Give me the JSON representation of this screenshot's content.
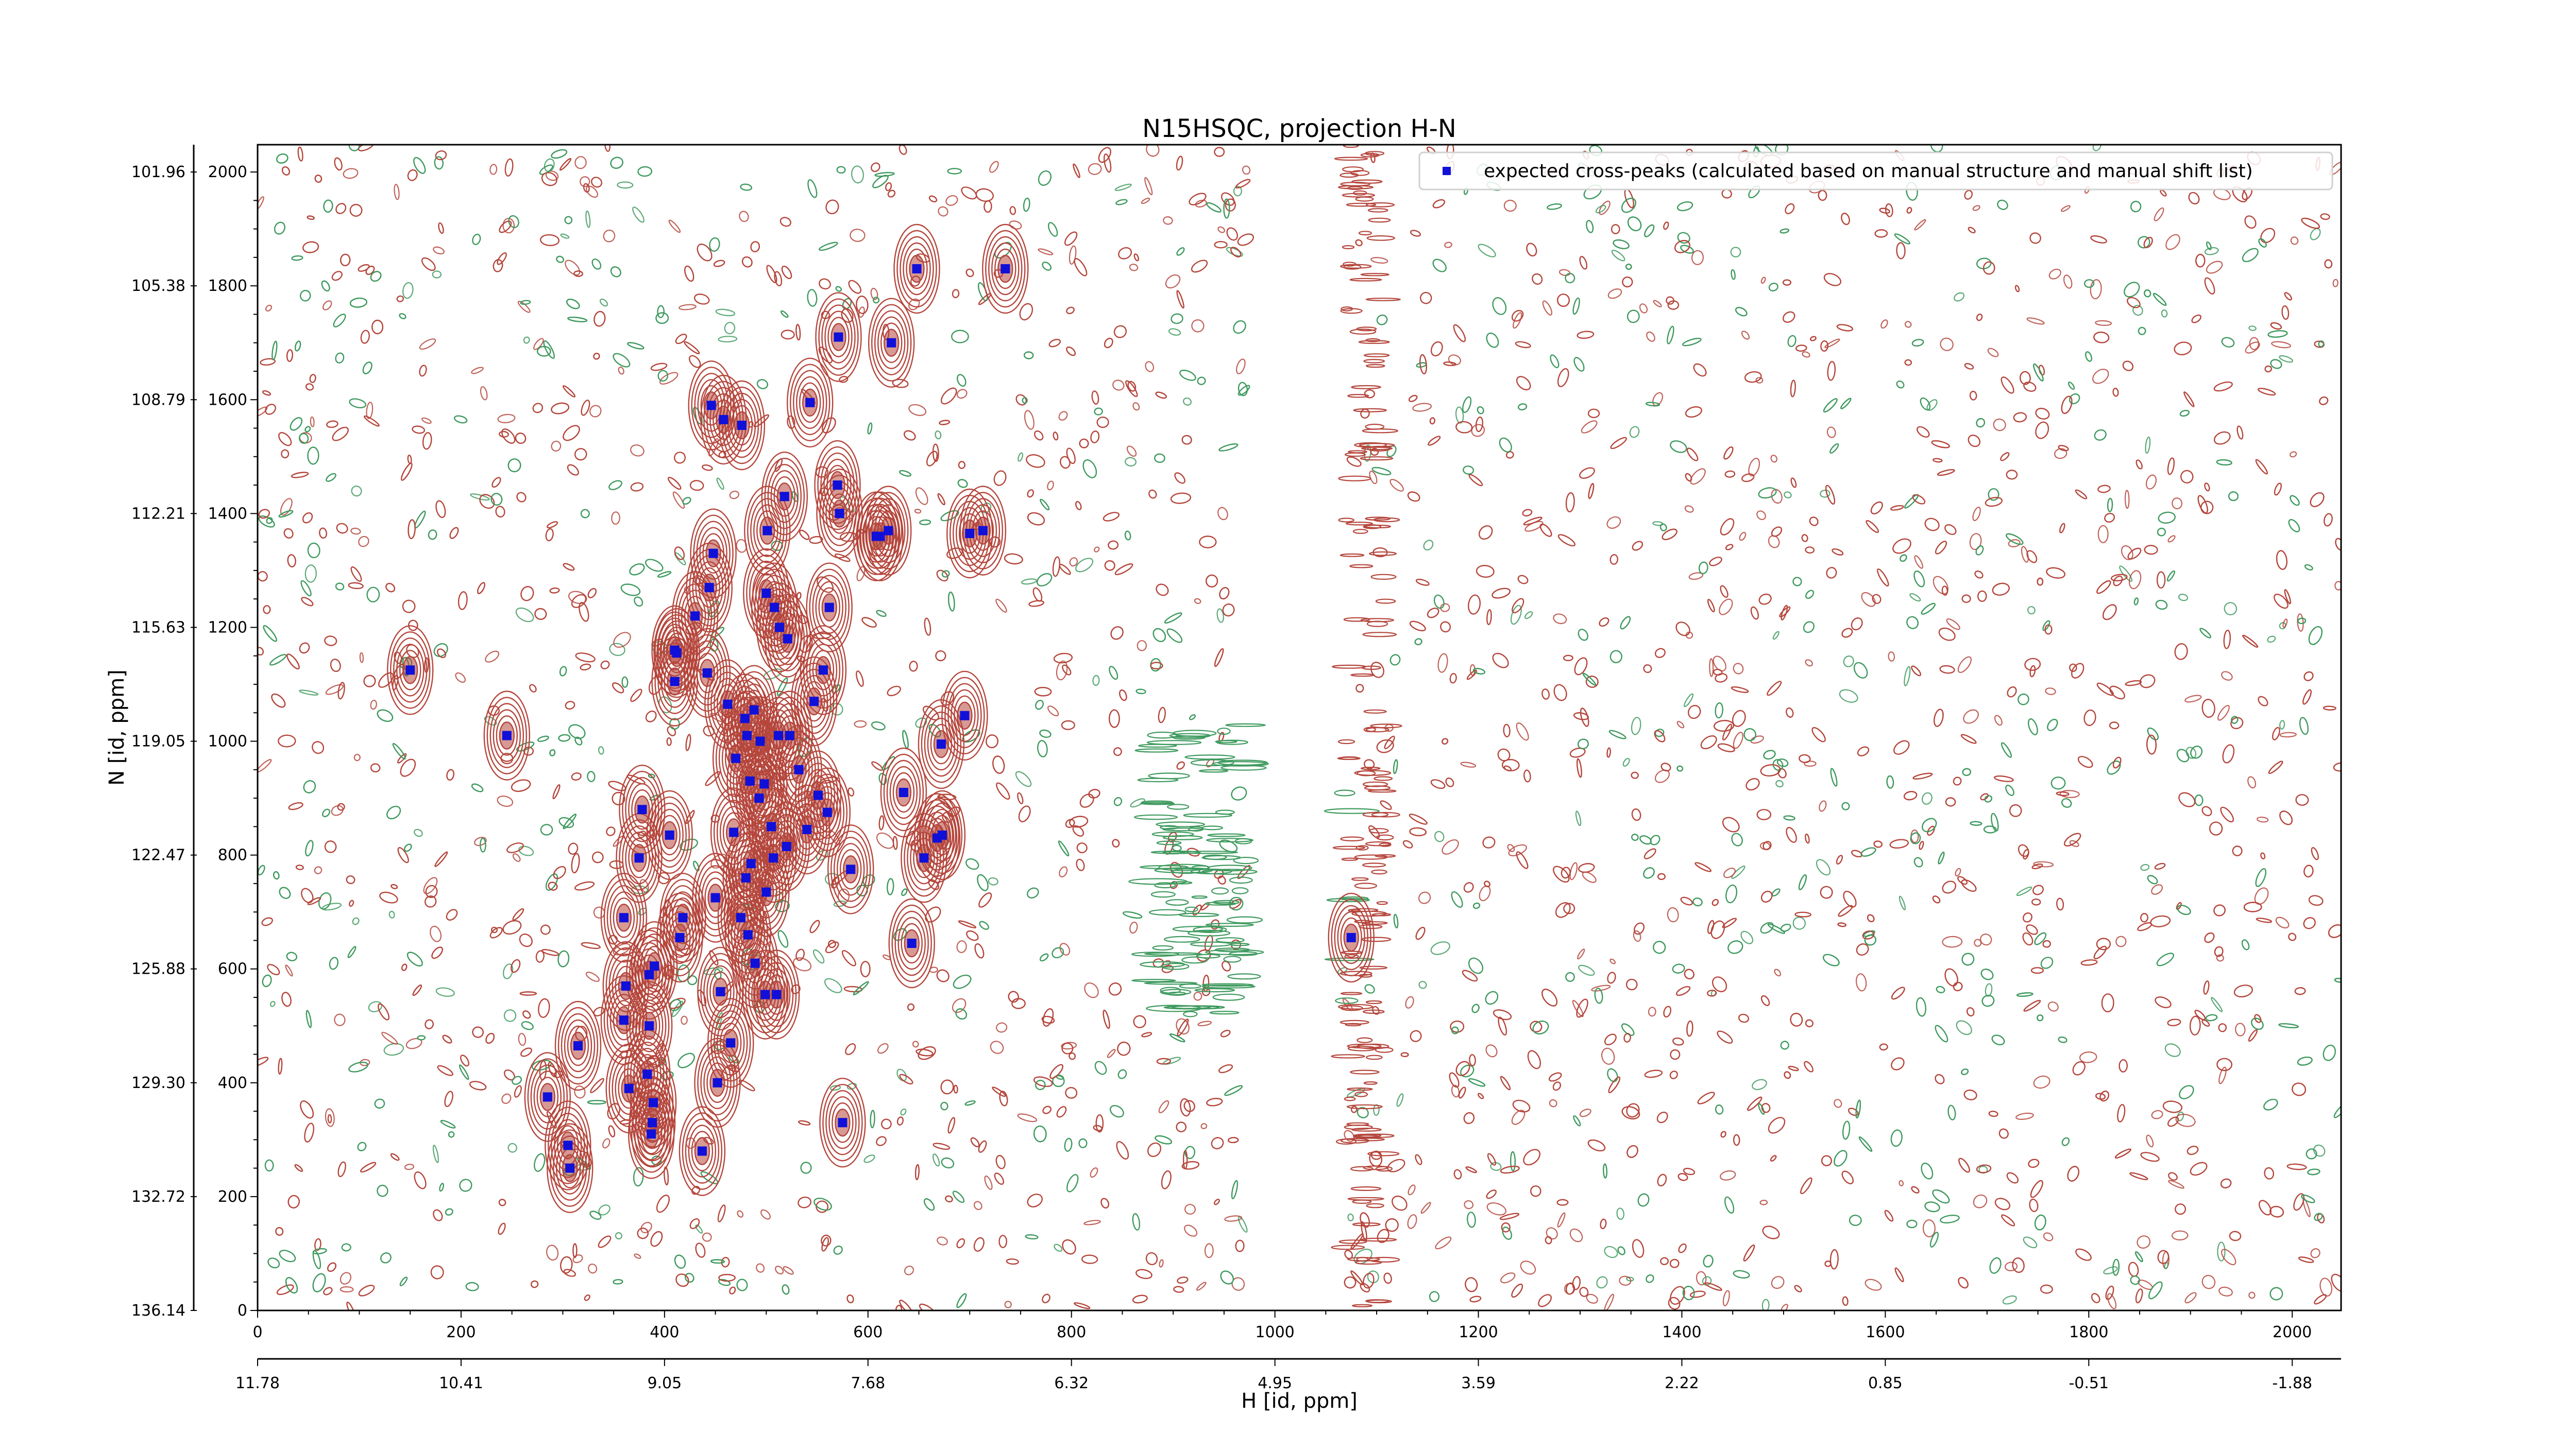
{
  "chart_data": {
    "type": "scatter",
    "title": "N15HSQC, projection H-N",
    "xlabel": "H [id, ppm]",
    "ylabel": "N [id, ppm]",
    "xlim": [
      0,
      2048
    ],
    "ylim": [
      0,
      2048
    ],
    "x_ticks": [
      0,
      200,
      400,
      600,
      800,
      1000,
      1200,
      1400,
      1600,
      1800,
      2000
    ],
    "y_ticks": [
      0,
      200,
      400,
      600,
      800,
      1000,
      1200,
      1400,
      1600,
      1800,
      2000
    ],
    "x_ppm_ticks": [
      "11.78",
      "10.41",
      "9.05",
      "7.68",
      "6.32",
      "4.95",
      "3.59",
      "2.22",
      "0.85",
      "-0.51",
      "-1.88"
    ],
    "y_ppm_ticks": [
      "136.14",
      "132.72",
      "129.30",
      "125.88",
      "122.47",
      "119.05",
      "115.63",
      "112.21",
      "108.79",
      "105.38",
      "101.96"
    ],
    "legend": {
      "label": "expected cross-peaks (calculated based on manual structure and manual shift list)",
      "position": "top-right"
    },
    "colors": {
      "positive_contour": "#b5463c",
      "negative_contour": "#3f9a5f",
      "peak_marker": "#1010d8"
    },
    "series": [
      {
        "name": "expected cross-peaks (calculated based on manual structure and manual shift list)",
        "points": [
          [
            150,
            1125
          ],
          [
            245,
            1010
          ],
          [
            285,
            375
          ],
          [
            305,
            290
          ],
          [
            307,
            250
          ],
          [
            315,
            465
          ],
          [
            360,
            510
          ],
          [
            360,
            690
          ],
          [
            362,
            570
          ],
          [
            365,
            390
          ],
          [
            375,
            795
          ],
          [
            378,
            880
          ],
          [
            383,
            415
          ],
          [
            385,
            500
          ],
          [
            385,
            590
          ],
          [
            387,
            310
          ],
          [
            388,
            330
          ],
          [
            389,
            365
          ],
          [
            390,
            605
          ],
          [
            405,
            835
          ],
          [
            410,
            1105
          ],
          [
            410,
            1160
          ],
          [
            412,
            1155
          ],
          [
            415,
            655
          ],
          [
            418,
            690
          ],
          [
            430,
            1220
          ],
          [
            437,
            280
          ],
          [
            442,
            1120
          ],
          [
            444,
            1270
          ],
          [
            446,
            1590
          ],
          [
            448,
            1330
          ],
          [
            450,
            725
          ],
          [
            452,
            400
          ],
          [
            455,
            560
          ],
          [
            458,
            1565
          ],
          [
            462,
            1065
          ],
          [
            465,
            470
          ],
          [
            468,
            840
          ],
          [
            470,
            970
          ],
          [
            475,
            690
          ],
          [
            476,
            1555
          ],
          [
            479,
            1040
          ],
          [
            480,
            760
          ],
          [
            481,
            1010
          ],
          [
            482,
            660
          ],
          [
            484,
            930
          ],
          [
            485,
            785
          ],
          [
            488,
            1055
          ],
          [
            489,
            610
          ],
          [
            493,
            900
          ],
          [
            494,
            1000
          ],
          [
            498,
            925
          ],
          [
            499,
            555
          ],
          [
            500,
            1260
          ],
          [
            500,
            735
          ],
          [
            501,
            1370
          ],
          [
            505,
            850
          ],
          [
            507,
            795
          ],
          [
            508,
            1235
          ],
          [
            510,
            555
          ],
          [
            512,
            1010
          ],
          [
            513,
            1200
          ],
          [
            518,
            1430
          ],
          [
            520,
            815
          ],
          [
            521,
            1180
          ],
          [
            523,
            1010
          ],
          [
            532,
            950
          ],
          [
            540,
            845
          ],
          [
            543,
            1595
          ],
          [
            547,
            1070
          ],
          [
            551,
            905
          ],
          [
            556,
            1125
          ],
          [
            560,
            875
          ],
          [
            562,
            1235
          ],
          [
            570,
            1450
          ],
          [
            571,
            1710
          ],
          [
            572,
            1400
          ],
          [
            575,
            330
          ],
          [
            583,
            775
          ],
          [
            608,
            1360
          ],
          [
            612,
            1360
          ],
          [
            620,
            1370
          ],
          [
            623,
            1700
          ],
          [
            635,
            910
          ],
          [
            643,
            645
          ],
          [
            648,
            1830
          ],
          [
            655,
            795
          ],
          [
            668,
            830
          ],
          [
            673,
            835
          ],
          [
            672,
            995
          ],
          [
            695,
            1045
          ],
          [
            700,
            1365
          ],
          [
            713,
            1370
          ],
          [
            735,
            1830
          ],
          [
            1075,
            655
          ]
        ]
      }
    ]
  }
}
